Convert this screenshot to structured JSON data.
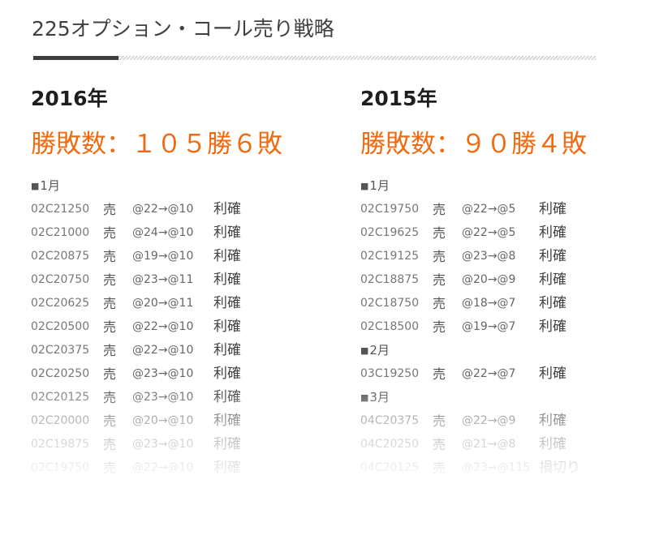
{
  "header": {
    "title": "225オプション・コール売り戦略"
  },
  "columns": [
    {
      "year": "2016年",
      "record": "勝敗数：１０５勝６敗",
      "groups": [
        {
          "month": "1月",
          "trades": [
            {
              "code": "02C21250",
              "side": "売",
              "prices": "@22→@10",
              "result": "利確"
            },
            {
              "code": "02C21000",
              "side": "売",
              "prices": "@24→@10",
              "result": "利確"
            },
            {
              "code": "02C20875",
              "side": "売",
              "prices": "@19→@10",
              "result": "利確"
            },
            {
              "code": "02C20750",
              "side": "売",
              "prices": "@23→@11",
              "result": "利確"
            },
            {
              "code": "02C20625",
              "side": "売",
              "prices": "@20→@11",
              "result": "利確"
            },
            {
              "code": "02C20500",
              "side": "売",
              "prices": "@22→@10",
              "result": "利確"
            },
            {
              "code": "02C20375",
              "side": "売",
              "prices": "@22→@10",
              "result": "利確"
            },
            {
              "code": "02C20250",
              "side": "売",
              "prices": "@23→@10",
              "result": "利確"
            },
            {
              "code": "02C20125",
              "side": "売",
              "prices": "@23→@10",
              "result": "利確"
            },
            {
              "code": "02C20000",
              "side": "売",
              "prices": "@20→@10",
              "result": "利確"
            },
            {
              "code": "02C19875",
              "side": "売",
              "prices": "@23→@10",
              "result": "利確"
            },
            {
              "code": "02C19750",
              "side": "売",
              "prices": "@22→@10",
              "result": "利確"
            }
          ]
        }
      ]
    },
    {
      "year": "2015年",
      "record": "勝敗数：９０勝４敗",
      "groups": [
        {
          "month": "1月",
          "trades": [
            {
              "code": "02C19750",
              "side": "売",
              "prices": "@22→@5",
              "result": "利確"
            },
            {
              "code": "02C19625",
              "side": "売",
              "prices": "@22→@5",
              "result": "利確"
            },
            {
              "code": "02C19125",
              "side": "売",
              "prices": "@23→@8",
              "result": "利確"
            },
            {
              "code": "02C18875",
              "side": "売",
              "prices": "@20→@9",
              "result": "利確"
            },
            {
              "code": "02C18750",
              "side": "売",
              "prices": "@18→@7",
              "result": "利確"
            },
            {
              "code": "02C18500",
              "side": "売",
              "prices": "@19→@7",
              "result": "利確"
            }
          ]
        },
        {
          "month": "2月",
          "trades": [
            {
              "code": "03C19250",
              "side": "売",
              "prices": "@22→@7",
              "result": "利確"
            }
          ]
        },
        {
          "month": "3月",
          "trades": [
            {
              "code": "04C20375",
              "side": "売",
              "prices": "@22→@9",
              "result": "利確"
            },
            {
              "code": "04C20250",
              "side": "売",
              "prices": "@21→@8",
              "result": "利確"
            },
            {
              "code": "04C20125",
              "side": "売",
              "prices": "@23→@115",
              "result": "損切り"
            }
          ]
        }
      ]
    }
  ],
  "colors": {
    "accent": "#ef6a10",
    "heading": "#1e1e1e",
    "text": "#555555",
    "rule_dark": "#3e3e3e",
    "rule_light": "#cfcfcf"
  }
}
